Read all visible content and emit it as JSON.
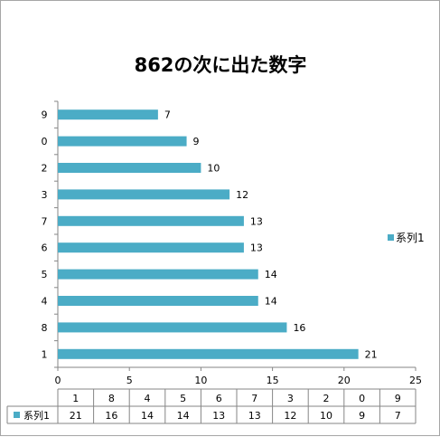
{
  "chart_data": {
    "type": "bar",
    "orientation": "horizontal",
    "title": "862の次に出た数字",
    "categories": [
      "1",
      "8",
      "4",
      "5",
      "6",
      "7",
      "3",
      "2",
      "0",
      "9"
    ],
    "series": [
      {
        "name": "系列1",
        "values": [
          21,
          16,
          14,
          14,
          13,
          13,
          12,
          10,
          9,
          7
        ],
        "color": "#4bacc6"
      }
    ],
    "xlim": [
      0,
      25
    ],
    "xticks": [
      0,
      5,
      10,
      15,
      20,
      25
    ],
    "legend_position": "right",
    "data_table": true,
    "grid": false
  }
}
